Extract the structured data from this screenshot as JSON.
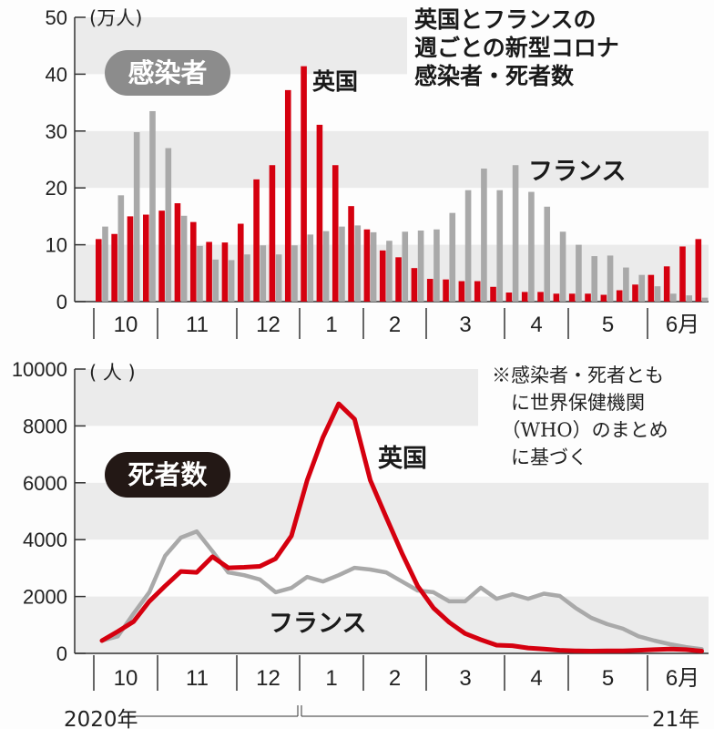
{
  "title_lines": [
    "英国とフランスの",
    "週ごとの新型コロナ",
    "感染者・死者数"
  ],
  "note": "※感染者・死者とも\n　に世界保健機関\n　（WHO）のまとめ\n　に基づく",
  "colors": {
    "uk": "#d5000f",
    "france": "#a9a9a9",
    "band": "#ebebeb",
    "pill_infections": "#8c8c8c",
    "pill_deaths": "#231815"
  },
  "months": [
    "10",
    "11",
    "12",
    "1",
    "2",
    "3",
    "4",
    "5",
    "6月"
  ],
  "years": {
    "start": "2020年",
    "end": "21年"
  },
  "chart_data": [
    {
      "type": "bar",
      "label": "感染者",
      "unit": "(万人)",
      "ylim": [
        0,
        50
      ],
      "yticks": [
        0,
        10,
        20,
        30,
        40,
        50
      ],
      "interval": "weekly",
      "series": [
        {
          "name": "英国",
          "values": [
            11.0,
            11.9,
            15.0,
            15.3,
            16.0,
            17.3,
            14.0,
            10.5,
            10.4,
            13.7,
            21.5,
            24.0,
            37.2,
            41.4,
            31.1,
            24.0,
            16.8,
            12.7,
            9.0,
            7.8,
            5.9,
            4.0,
            3.9,
            3.6,
            3.6,
            2.6,
            1.6,
            1.7,
            1.7,
            1.4,
            1.4,
            1.4,
            1.2,
            2.0,
            3.0,
            4.7,
            6.2,
            9.7,
            11.0
          ]
        },
        {
          "name": "フランス",
          "values": [
            13.2,
            18.7,
            29.8,
            33.5,
            27.0,
            15.1,
            9.8,
            7.4,
            7.3,
            8.3,
            9.9,
            8.3,
            9.9,
            11.8,
            12.4,
            13.2,
            13.4,
            12.2,
            10.7,
            12.3,
            12.5,
            12.7,
            15.6,
            19.6,
            23.4,
            19.6,
            24.0,
            19.3,
            16.7,
            12.3,
            10.0,
            8.0,
            8.1,
            6.0,
            4.7,
            2.7,
            1.4,
            1.1,
            0.7
          ]
        }
      ]
    },
    {
      "type": "line",
      "label": "死者数",
      "unit": "( 人 )",
      "ylim": [
        0,
        10000
      ],
      "yticks": [
        0,
        2000,
        4000,
        6000,
        8000,
        10000
      ],
      "interval": "weekly",
      "series": [
        {
          "name": "英国",
          "values": [
            450,
            770,
            1120,
            1830,
            2370,
            2880,
            2850,
            3400,
            3010,
            3030,
            3060,
            3330,
            4130,
            6090,
            7600,
            8780,
            8240,
            6090,
            4800,
            3530,
            2370,
            1600,
            1090,
            700,
            480,
            290,
            270,
            190,
            150,
            110,
            90,
            80,
            90,
            90,
            110,
            130,
            150,
            130,
            80
          ]
        },
        {
          "name": "フランス",
          "values": [
            450,
            600,
            1400,
            2150,
            3430,
            4070,
            4290,
            3590,
            2850,
            2750,
            2600,
            2150,
            2300,
            2690,
            2530,
            2750,
            3010,
            2950,
            2850,
            2530,
            2210,
            2150,
            1830,
            1830,
            2310,
            1920,
            2080,
            1920,
            2100,
            2020,
            1600,
            1250,
            1030,
            870,
            600,
            450,
            320,
            220,
            150
          ]
        }
      ]
    }
  ]
}
